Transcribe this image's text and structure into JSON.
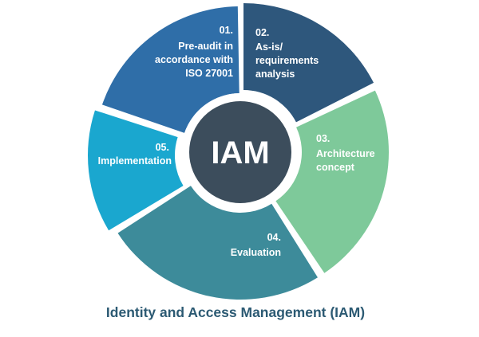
{
  "diagram": {
    "center_label": "IAM",
    "title": "Identity and Access Management (IAM)",
    "colors": {
      "center_fill": "#3c4d5c",
      "center_text": "#ffffff",
      "text_light": "#ffffff",
      "title": "#2c5a73",
      "ring_gap": "#ffffff"
    },
    "segments": [
      {
        "number": "01.",
        "lines": [
          "Pre-audit in",
          "accordance with",
          "ISO 27001"
        ],
        "color": "#2f6ea8",
        "text_color": "#ffffff"
      },
      {
        "number": "02.",
        "lines": [
          "As-is/",
          "requirements",
          "analysis"
        ],
        "color": "#2e577c",
        "text_color": "#ffffff"
      },
      {
        "number": "03.",
        "lines": [
          "Architecture",
          "concept"
        ],
        "color": "#7ec99a",
        "text_color": "#ffffff"
      },
      {
        "number": "04.",
        "lines": [
          "Evaluation"
        ],
        "color": "#3d8b9a",
        "text_color": "#ffffff"
      },
      {
        "number": "05.",
        "lines": [
          "Implementation"
        ],
        "color": "#1aa7cf",
        "text_color": "#ffffff"
      }
    ]
  }
}
